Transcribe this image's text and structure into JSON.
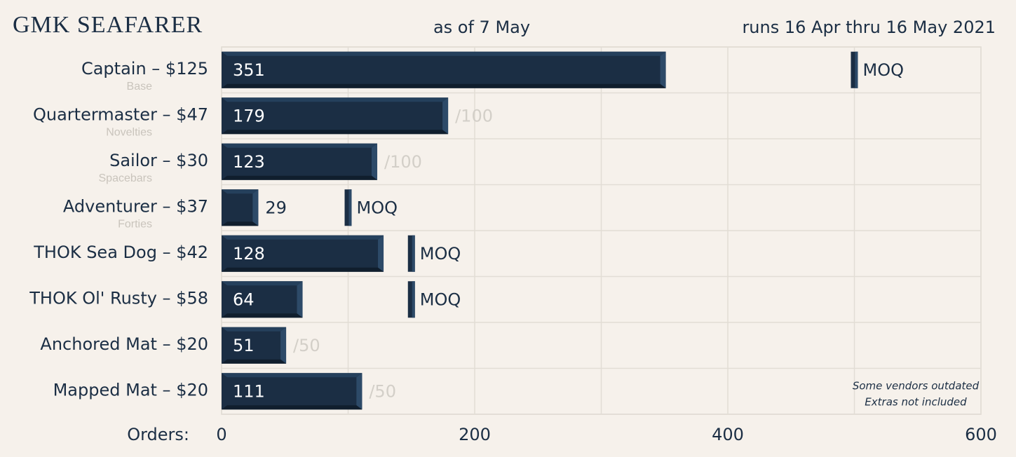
{
  "chart_data": {
    "type": "bar",
    "orientation": "horizontal",
    "title": "GMK SEAFARER",
    "subtitle": "as of 7 May",
    "period": "runs 16 Apr thru 16 May 2021",
    "x_label": "Orders:",
    "categories": [
      "Captain – $125",
      "Quartermaster – $47",
      "Sailor – $30",
      "Adventurer – $37",
      "THOK Sea Dog – $42",
      "THOK Ol' Rusty – $58",
      "Anchored Mat – $20",
      "Mapped Mat – $20"
    ],
    "category_notes": [
      "Base",
      "Novelties",
      "Spacebars",
      "Forties",
      null,
      null,
      null,
      null
    ],
    "values": [
      351,
      179,
      123,
      29,
      128,
      64,
      51,
      111
    ],
    "goal_labels": [
      null,
      "/100",
      "/100",
      null,
      null,
      null,
      "/50",
      "/50"
    ],
    "moq": [
      500,
      null,
      null,
      100,
      150,
      150,
      null,
      null
    ],
    "moq_label": "MOQ",
    "color": "#1b2e44",
    "xlim": [
      0,
      600
    ],
    "xticks": [
      0,
      200,
      400,
      600
    ],
    "minor_xticks": [
      100,
      300,
      500
    ],
    "grid": true,
    "notes": [
      "Some vendors outdated",
      "Extras not included"
    ]
  }
}
